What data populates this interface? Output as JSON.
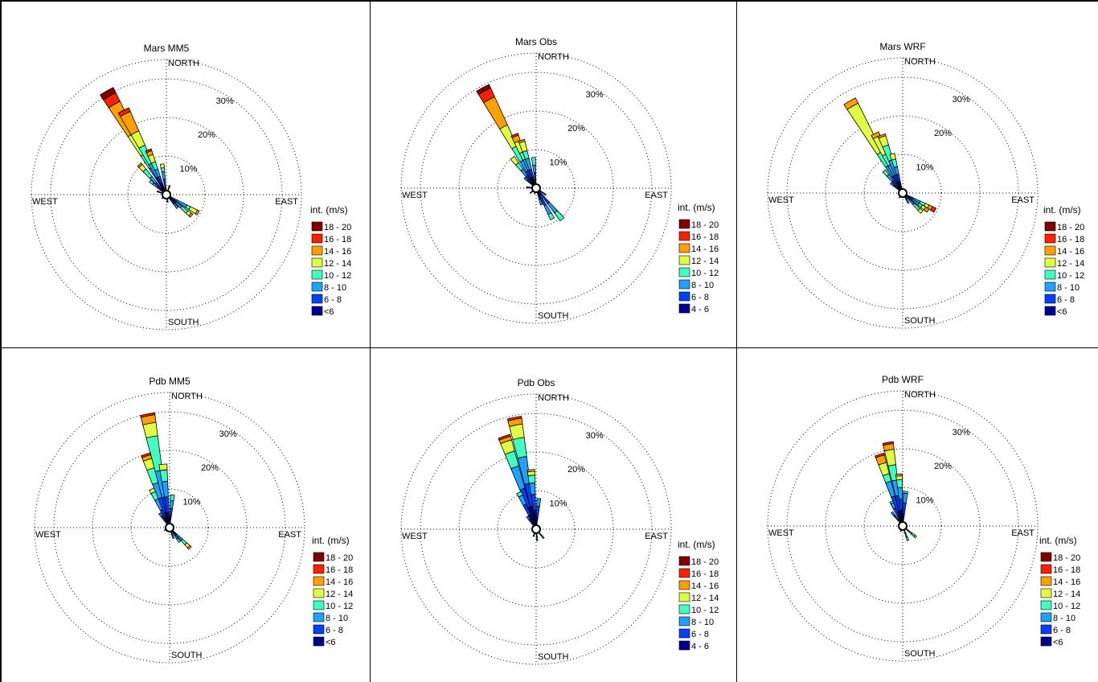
{
  "chart_data": [
    {
      "type": "wind-rose",
      "title": "Mars MM5",
      "directions": [
        "NORTH",
        "EAST",
        "SOUTH",
        "WEST"
      ],
      "rings": [
        "10%",
        "20%",
        "30%"
      ],
      "rlim": [
        0,
        35
      ],
      "grid": true,
      "legend_title": "int. (m/s)",
      "legend_position": "right",
      "bins": [
        "18 - 20",
        "16 - 18",
        "14 - 16",
        "12 - 14",
        "10 - 12",
        "8 - 10",
        "6 - 8",
        "<6"
      ],
      "colors": [
        "#800000",
        "#ff2000",
        "#ffa000",
        "#e0ff40",
        "#40ffc0",
        "#20a0ff",
        "#0040ff",
        "#000090"
      ],
      "petals": [
        {
          "dir": 330,
          "cum": [
            3,
            5,
            8,
            12,
            18,
            27,
            29.5,
            31
          ]
        },
        {
          "dir": 333,
          "cum": [
            3,
            5,
            9,
            14,
            18,
            23.5,
            24.5,
            24.5
          ]
        },
        {
          "dir": 338,
          "cum": [
            3,
            5,
            7,
            9,
            11,
            12,
            12.5,
            12.5
          ]
        },
        {
          "dir": 318,
          "cum": [
            2,
            4,
            6,
            8.5,
            10,
            10.5
          ]
        },
        {
          "dir": 352,
          "cum": [
            2,
            4,
            6,
            7,
            8
          ]
        },
        {
          "dir": 310,
          "cum": [
            2,
            3,
            4.5,
            5.5
          ]
        },
        {
          "dir": 290,
          "cum": [
            1.5,
            2.5
          ]
        },
        {
          "dir": 20,
          "cum": [
            1.5,
            2.5
          ]
        },
        {
          "dir": 120,
          "cum": [
            1,
            3,
            6,
            7,
            9,
            9.5
          ]
        },
        {
          "dir": 130,
          "cum": [
            1,
            3,
            5,
            7,
            8,
            8.5
          ]
        },
        {
          "dir": 140,
          "cum": [
            1.5,
            3,
            4.5
          ]
        },
        {
          "dir": 170,
          "cum": [
            1,
            2
          ]
        },
        {
          "dir": 230,
          "cum": [
            1,
            1.5
          ]
        }
      ]
    },
    {
      "type": "wind-rose",
      "title": "Mars Obs",
      "directions": [
        "NORTH",
        "EAST",
        "SOUTH",
        "WEST"
      ],
      "rings": [
        "10%",
        "20%",
        "30%"
      ],
      "rlim": [
        0,
        35
      ],
      "grid": true,
      "legend_title": "int. (m/s)",
      "legend_position": "right",
      "bins": [
        "18 - 20",
        "16 - 18",
        "14 - 16",
        "12 - 14",
        "10 - 12",
        "8 - 10",
        "6 - 8",
        "4 - 6"
      ],
      "colors": [
        "#800000",
        "#ff2000",
        "#ffa000",
        "#e0ff40",
        "#40ffc0",
        "#20a0ff",
        "#0040ff",
        "#000090"
      ],
      "petals": [
        {
          "dir": 332,
          "cum": [
            3,
            5,
            8,
            12,
            18,
            26,
            28.5,
            29.5
          ]
        },
        {
          "dir": 338,
          "cum": [
            3,
            5,
            8,
            10,
            13,
            14.5,
            15
          ]
        },
        {
          "dir": 343,
          "cum": [
            3,
            5,
            8,
            10,
            12.5,
            13
          ]
        },
        {
          "dir": 322,
          "cum": [
            2,
            4,
            6,
            8,
            10
          ]
        },
        {
          "dir": 355,
          "cum": [
            2,
            4,
            6,
            8
          ]
        },
        {
          "dir": 312,
          "cum": [
            2,
            3,
            4
          ]
        },
        {
          "dir": 275,
          "cum": [
            1.5,
            2.5
          ]
        },
        {
          "dir": 140,
          "cum": [
            2,
            5,
            8,
            10.5
          ]
        },
        {
          "dir": 152,
          "cum": [
            2,
            5,
            7.5,
            9
          ]
        },
        {
          "dir": 162,
          "cum": [
            1.5,
            3,
            4.5
          ]
        },
        {
          "dir": 125,
          "cum": [
            1,
            2,
            3
          ]
        },
        {
          "dir": 230,
          "cum": [
            1,
            2
          ]
        },
        {
          "dir": 195,
          "cum": [
            1,
            1.5
          ]
        }
      ]
    },
    {
      "type": "wind-rose",
      "title": "Mars WRF",
      "directions": [
        "NORTH",
        "EAST",
        "SOUTH",
        "WEST"
      ],
      "rings": [
        "10%",
        "20%",
        "30%"
      ],
      "rlim": [
        0,
        35
      ],
      "grid": true,
      "legend_title": "int. (m/s)",
      "legend_position": "right",
      "bins": [
        "18 - 20",
        "16 - 18",
        "14 - 16",
        "12 - 14",
        "10 - 12",
        "8 - 10",
        "6 - 8",
        "<6"
      ],
      "colors": [
        "#800000",
        "#ff2000",
        "#ffa000",
        "#e0ff40",
        "#40ffc0",
        "#20a0ff",
        "#0040ff",
        "#000090"
      ],
      "petals": [
        {
          "dir": 330,
          "cum": [
            3,
            5,
            8,
            12,
            26,
            27.5
          ]
        },
        {
          "dir": 335,
          "cum": [
            3,
            5,
            8,
            11,
            16,
            17
          ]
        },
        {
          "dir": 340,
          "cum": [
            3,
            5,
            9,
            13,
            15.5,
            16
          ]
        },
        {
          "dir": 345,
          "cum": [
            3,
            5,
            7,
            9,
            10.5
          ]
        },
        {
          "dir": 320,
          "cum": [
            2,
            4,
            6,
            7.5
          ]
        },
        {
          "dir": 310,
          "cum": [
            1.5,
            3,
            4
          ]
        },
        {
          "dir": 118,
          "cum": [
            1,
            3,
            5,
            6.5,
            7.5,
            8.5,
            9.5
          ]
        },
        {
          "dir": 125,
          "cum": [
            1,
            3,
            5,
            6,
            7,
            8
          ]
        },
        {
          "dir": 135,
          "cum": [
            1,
            2,
            4,
            6,
            7
          ]
        },
        {
          "dir": 150,
          "cum": [
            1,
            2,
            3
          ]
        },
        {
          "dir": 215,
          "cum": [
            1,
            1.5
          ]
        }
      ]
    },
    {
      "type": "wind-rose",
      "title": "Pdb MM5",
      "directions": [
        "NORTH",
        "EAST",
        "SOUTH",
        "WEST"
      ],
      "rings": [
        "10%",
        "20%",
        "30%"
      ],
      "rlim": [
        0,
        35
      ],
      "grid": true,
      "legend_title": "int. (m/s)",
      "legend_position": "right",
      "bins": [
        "18 - 20",
        "16 - 18",
        "14 - 16",
        "12 - 14",
        "10 - 12",
        "8 - 10",
        "6 - 8",
        "<6"
      ],
      "colors": [
        "#800000",
        "#ff2000",
        "#ffa000",
        "#e0ff40",
        "#40ffc0",
        "#20a0ff",
        "#0040ff",
        "#000090"
      ],
      "petals": [
        {
          "dir": 349,
          "cum": [
            4,
            8,
            15,
            24,
            27.5,
            29.5,
            30
          ]
        },
        {
          "dir": 342,
          "cum": [
            4,
            8,
            12,
            16,
            18.5,
            19.5,
            20
          ]
        },
        {
          "dir": 354,
          "cum": [
            4,
            8,
            12,
            15,
            16.5
          ]
        },
        {
          "dir": 335,
          "cum": [
            3,
            5,
            8,
            10,
            11
          ]
        },
        {
          "dir": 5,
          "cum": [
            3,
            5,
            7,
            8.5
          ]
        },
        {
          "dir": 325,
          "cum": [
            2,
            3.5,
            4.5
          ]
        },
        {
          "dir": 135,
          "cum": [
            1,
            2.5,
            4.5,
            6,
            7,
            7.5
          ]
        },
        {
          "dir": 145,
          "cum": [
            1,
            2.5,
            3.5,
            4.5
          ]
        },
        {
          "dir": 160,
          "cum": [
            1,
            2,
            3
          ]
        },
        {
          "dir": 240,
          "cum": [
            1,
            1.5
          ]
        }
      ]
    },
    {
      "type": "wind-rose",
      "title": "Pdb Obs",
      "directions": [
        "NORTH",
        "EAST",
        "SOUTH",
        "WEST"
      ],
      "rings": [
        "10%",
        "20%",
        "30%"
      ],
      "rlim": [
        0,
        35
      ],
      "grid": true,
      "legend_title": "int. (m/s)",
      "legend_position": "right",
      "bins": [
        "18 - 20",
        "16 - 18",
        "14 - 16",
        "12 - 14",
        "10 - 12",
        "8 - 10",
        "6 - 8",
        "4 - 6"
      ],
      "colors": [
        "#800000",
        "#ff2000",
        "#ffa000",
        "#e0ff40",
        "#40ffc0",
        "#20a0ff",
        "#0040ff",
        "#000090"
      ],
      "petals": [
        {
          "dir": 349,
          "cum": [
            6,
            12,
            19,
            24,
            27.5,
            29,
            29.5
          ]
        },
        {
          "dir": 341,
          "cum": [
            6,
            11,
            17,
            21,
            24,
            25,
            25.5
          ]
        },
        {
          "dir": 355,
          "cum": [
            5,
            9,
            12,
            14,
            15,
            15.5
          ]
        },
        {
          "dir": 335,
          "cum": [
            4,
            7,
            9.5,
            10.5
          ]
        },
        {
          "dir": 5,
          "cum": [
            3,
            6,
            8
          ]
        },
        {
          "dir": 325,
          "cum": [
            2,
            3,
            4
          ]
        },
        {
          "dir": 140,
          "cum": [
            1,
            2,
            3
          ]
        },
        {
          "dir": 175,
          "cum": [
            1,
            2,
            3
          ]
        },
        {
          "dir": 200,
          "cum": [
            1,
            2
          ]
        }
      ]
    },
    {
      "type": "wind-rose",
      "title": "Pdb WRF",
      "directions": [
        "NORTH",
        "EAST",
        "SOUTH",
        "WEST"
      ],
      "rings": [
        "10%",
        "20%",
        "30%"
      ],
      "rlim": [
        0,
        35
      ],
      "grid": true,
      "legend_title": "int. (m/s)",
      "legend_position": "right",
      "bins": [
        "18 - 20",
        "16 - 18",
        "14 - 16",
        "12 - 14",
        "10 - 12",
        "8 - 10",
        "6 - 8",
        "<6"
      ],
      "colors": [
        "#800000",
        "#ff2000",
        "#ffa000",
        "#e0ff40",
        "#40ffc0",
        "#20a0ff",
        "#0040ff",
        "#000090"
      ],
      "petals": [
        {
          "dir": 350,
          "cum": [
            4,
            8,
            12,
            16,
            20,
            21.5,
            22
          ]
        },
        {
          "dir": 342,
          "cum": [
            4,
            8,
            12,
            14,
            17,
            19,
            19.5
          ]
        },
        {
          "dir": 356,
          "cum": [
            4,
            7,
            10,
            12,
            13,
            13.5
          ]
        },
        {
          "dir": 5,
          "cum": [
            3,
            6,
            8.5,
            9
          ]
        },
        {
          "dir": 335,
          "cum": [
            3,
            5,
            6.5,
            7
          ]
        },
        {
          "dir": 322,
          "cum": [
            2,
            3.5,
            4.5
          ]
        },
        {
          "dir": 130,
          "cum": [
            1,
            2,
            3,
            4,
            4.5
          ]
        },
        {
          "dir": 160,
          "cum": [
            1,
            2,
            3,
            4
          ]
        },
        {
          "dir": 200,
          "cum": [
            1,
            1.5
          ]
        }
      ]
    }
  ]
}
